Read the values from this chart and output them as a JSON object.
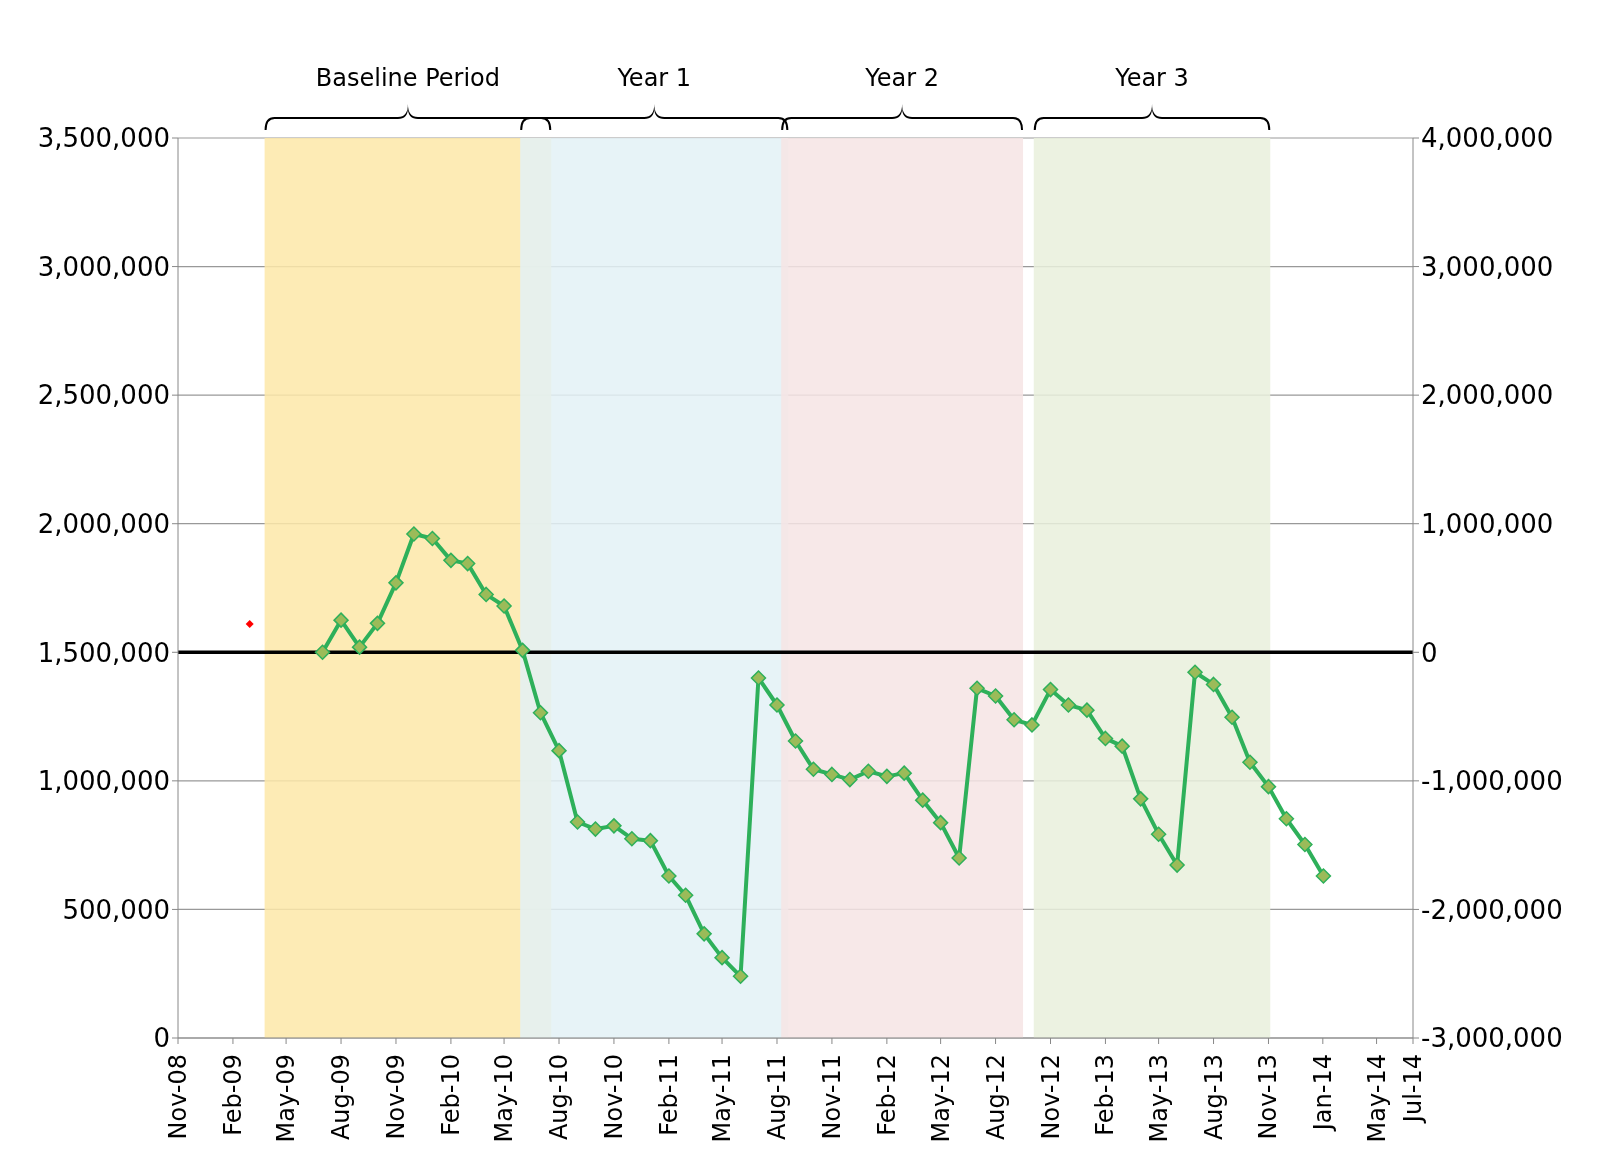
{
  "chart_data": {
    "type": "line",
    "xlim": [
      "2008-11",
      "2014-07"
    ],
    "xticks": [
      {
        "value": "2008-11-01",
        "label": "Nov-08"
      },
      {
        "value": "2009-02-01",
        "label": "Feb-09"
      },
      {
        "value": "2009-05-01",
        "label": "May-09"
      },
      {
        "value": "2009-08-01",
        "label": "Aug-09"
      },
      {
        "value": "2009-11-01",
        "label": "Nov-09"
      },
      {
        "value": "2010-02-01",
        "label": "Feb-10"
      },
      {
        "value": "2010-05-01",
        "label": "May-10"
      },
      {
        "value": "2010-08-01",
        "label": "Aug-10"
      },
      {
        "value": "2010-11-01",
        "label": "Nov-10"
      },
      {
        "value": "2011-02-01",
        "label": "Feb-11"
      },
      {
        "value": "2011-05-01",
        "label": "May-11"
      },
      {
        "value": "2011-08-01",
        "label": "Aug-11"
      },
      {
        "value": "2011-11-01",
        "label": "Nov-11"
      },
      {
        "value": "2012-02-01",
        "label": "Feb-12"
      },
      {
        "value": "2012-05-01",
        "label": "May-12"
      },
      {
        "value": "2012-08-01",
        "label": "Aug-12"
      },
      {
        "value": "2012-11-01",
        "label": "Nov-12"
      },
      {
        "value": "2013-02-01",
        "label": "Feb-13"
      },
      {
        "value": "2013-05-01",
        "label": "May-13"
      },
      {
        "value": "2013-08-01",
        "label": "Aug-13"
      },
      {
        "value": "2013-11-01",
        "label": "Nov-13"
      },
      {
        "value": "2014-01-31",
        "label": "Jan-14"
      },
      {
        "value": "2014-05-01",
        "label": "May-14"
      },
      {
        "value": "2014-07-01",
        "label": "Jul-14"
      }
    ],
    "ylim": [
      0,
      3500000
    ],
    "yticks": [
      0,
      {
        "value": 500000,
        "label": "500,000"
      },
      {
        "value": 1000000,
        "label": "1,000,000"
      },
      {
        "value": 1500000,
        "label": "1,500,000"
      },
      {
        "value": 2000000,
        "label": "2,000,000"
      },
      {
        "value": 2500000,
        "label": "2,500,000"
      },
      {
        "value": 3000000,
        "label": "3,000,000"
      },
      {
        "value": 3500000,
        "label": "3,500,000"
      }
    ],
    "y2lim": [
      -3000000,
      4000000
    ],
    "y2ticks": [
      {
        "value": -3000000,
        "label": "-3,000,000"
      },
      {
        "value": -2000000,
        "label": "-2,000,000"
      },
      {
        "value": -1000000,
        "label": "-1,000,000"
      },
      0,
      {
        "value": 1000000,
        "label": "1,000,000"
      },
      {
        "value": 2000000,
        "label": "2,000,000"
      },
      {
        "value": 3000000,
        "label": "3,000,000"
      },
      {
        "value": 4000000,
        "label": "4,000,000"
      }
    ],
    "grid": "y",
    "legend": false,
    "series": [
      {
        "axis": "y2",
        "color": "#2eb05a",
        "marker": "diamond",
        "line_style": "solid",
        "x": [
          "2009-07",
          "2009-08",
          "2009-09",
          "2009-10",
          "2009-11",
          "2009-12",
          "2010-01",
          "2010-02",
          "2010-03",
          "2010-04",
          "2010-05",
          "2010-06",
          "2010-07",
          "2010-08",
          "2010-09",
          "2010-10",
          "2010-11",
          "2010-12",
          "2011-01",
          "2011-02",
          "2011-03",
          "2011-04",
          "2011-05",
          "2011-06",
          "2011-07",
          "2011-08",
          "2011-09",
          "2011-10",
          "2011-11",
          "2011-12",
          "2012-01",
          "2012-02",
          "2012-03",
          "2012-04",
          "2012-05",
          "2012-06",
          "2012-07",
          "2012-08",
          "2012-09",
          "2012-10",
          "2012-11",
          "2012-12",
          "2013-01",
          "2013-02",
          "2013-03",
          "2013-04",
          "2013-05",
          "2013-06",
          "2013-07",
          "2013-08",
          "2013-09",
          "2013-10",
          "2013-11",
          "2013-12",
          "2014-01",
          "2014-02"
        ],
        "values": [
          0,
          250000,
          40000,
          225000,
          540000,
          920000,
          885000,
          715000,
          690000,
          450000,
          360000,
          15000,
          -470000,
          -765000,
          -1320000,
          -1375000,
          -1350000,
          -1450000,
          -1465000,
          -1740000,
          -1890000,
          -2190000,
          -2375000,
          -2520000,
          -200000,
          -410000,
          -690000,
          -910000,
          -950000,
          -990000,
          -925000,
          -965000,
          -940000,
          -1150000,
          -1325000,
          -1600000,
          -280000,
          -340000,
          -525000,
          -565000,
          -290000,
          -410000,
          -450000,
          -670000,
          -730000,
          -1140000,
          -1415000,
          -1655000,
          -155000,
          -250000,
          -505000,
          -855000,
          -1045000,
          -1295000,
          -1495000,
          -1740000
        ]
      },
      {
        "type": "scatter",
        "color": "#ff0000",
        "marker": "diamond",
        "x": [
          "2009-03"
        ],
        "values": [
          1610000
        ]
      }
    ],
    "ref_lines": [
      {
        "axis": "y2",
        "value": 0,
        "color": "#000000"
      }
    ],
    "bands": [
      {
        "axis": "x",
        "from": "2009-03-26",
        "to": "2010-07-19",
        "label": "Baseline Period",
        "color": "#fde7a8"
      },
      {
        "axis": "x",
        "from": "2010-05-28",
        "to": "2011-08-20",
        "label": "Year 1",
        "color": "#e3f1f6"
      },
      {
        "axis": "x",
        "from": "2011-08-08",
        "to": "2012-09-16",
        "label": "Year 2",
        "color": "#f6e4e4"
      },
      {
        "axis": "x",
        "from": "2012-10-04",
        "to": "2013-11-04",
        "label": "Year 3",
        "color": "#e9f0dc"
      }
    ]
  }
}
